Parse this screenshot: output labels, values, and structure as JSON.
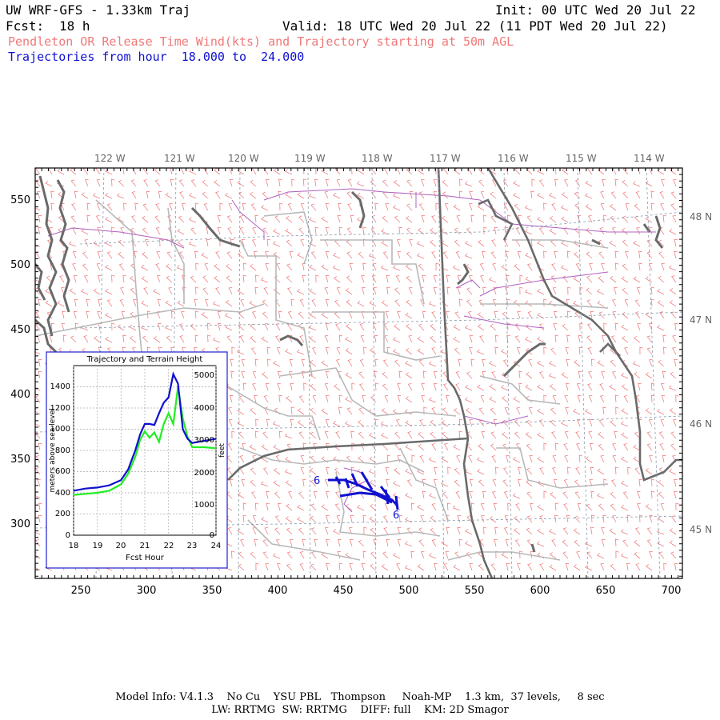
{
  "header": {
    "title": "UW WRF-GFS - 1.33km Traj",
    "init": "Init: 00 UTC Wed 20 Jul 22",
    "fcst_label": "Fcst:",
    "fcst_value": "18 h",
    "valid": "Valid: 18 UTC Wed 20 Jul 22 (11 PDT Wed 20 Jul 22)",
    "subtitle": "Pendleton OR Release Time Wind(kts) and Trajectory starting at 50m AGL",
    "traj_range": "Trajectories from hour  18.000 to  24.000"
  },
  "map": {
    "lon_labels": [
      "122 W",
      "121 W",
      "120 W",
      "119 W",
      "118 W",
      "117 W",
      "116 W",
      "115 W",
      "114 W"
    ],
    "lat_labels": [
      "48 N",
      "47 N",
      "46 N",
      "45 N"
    ],
    "x_ticks": [
      "250",
      "300",
      "350",
      "400",
      "450",
      "500",
      "550",
      "600",
      "650",
      "700"
    ],
    "y_ticks": [
      "550",
      "500",
      "450",
      "400",
      "350",
      "300"
    ],
    "traj_start_label": "6",
    "traj_end_label": "6",
    "colors": {
      "wind_barbs": "#f08080",
      "trajectory": "#1010d0",
      "state_border": "#666666",
      "county_border": "#b8b8b8",
      "rivers": "#b060c0",
      "coast": "#666666"
    }
  },
  "inset": {
    "title": "Trajectory and Terrain Height",
    "xlabel": "Fcst Hour",
    "ylabel_left": "meters above sea level",
    "ylabel_right": "feet",
    "x_ticks": [
      "18",
      "19",
      "20",
      "21",
      "22",
      "23",
      "24"
    ],
    "y_ticks_left": [
      "0",
      "200",
      "400",
      "600",
      "800",
      "1000",
      "1200",
      "1400"
    ],
    "y_ticks_right": [
      "0",
      "1000",
      "2000",
      "3000",
      "4000",
      "5000"
    ]
  },
  "chart_data": {
    "type": "line",
    "title": "Trajectory and Terrain Height",
    "xlabel": "Fcst Hour",
    "ylabel": "meters above sea level",
    "xlim": [
      18,
      24
    ],
    "ylim": [
      0,
      1600
    ],
    "grid": true,
    "series": [
      {
        "color": "#1010d0",
        "x": [
          18,
          18.5,
          19,
          19.5,
          20,
          20.3,
          20.6,
          20.8,
          21,
          21.2,
          21.4,
          21.6,
          21.8,
          22,
          22.2,
          22.4,
          22.6,
          22.8,
          23,
          23.5,
          24
        ],
        "y": [
          420,
          440,
          450,
          470,
          520,
          620,
          800,
          950,
          1050,
          1050,
          1040,
          1150,
          1250,
          1300,
          1520,
          1430,
          1000,
          910,
          870,
          890,
          910
        ]
      },
      {
        "color": "#22ee22",
        "x": [
          18,
          18.5,
          19,
          19.5,
          20,
          20.3,
          20.6,
          20.8,
          21,
          21.2,
          21.4,
          21.6,
          21.8,
          22,
          22.2,
          22.4,
          22.6,
          22.8,
          23,
          23.5,
          24
        ],
        "y": [
          380,
          390,
          400,
          420,
          480,
          580,
          740,
          900,
          980,
          920,
          970,
          880,
          1050,
          1150,
          1050,
          1400,
          1100,
          930,
          830,
          830,
          820
        ]
      }
    ]
  },
  "footer": {
    "line1": "Model Info: V4.1.3    No Cu    YSU PBL   Thompson     Noah-MP    1.3 km,  37 levels,     8 sec",
    "line2": "LW: RRTMG  SW: RRTMG    DIFF: full    KM: 2D Smagor"
  }
}
